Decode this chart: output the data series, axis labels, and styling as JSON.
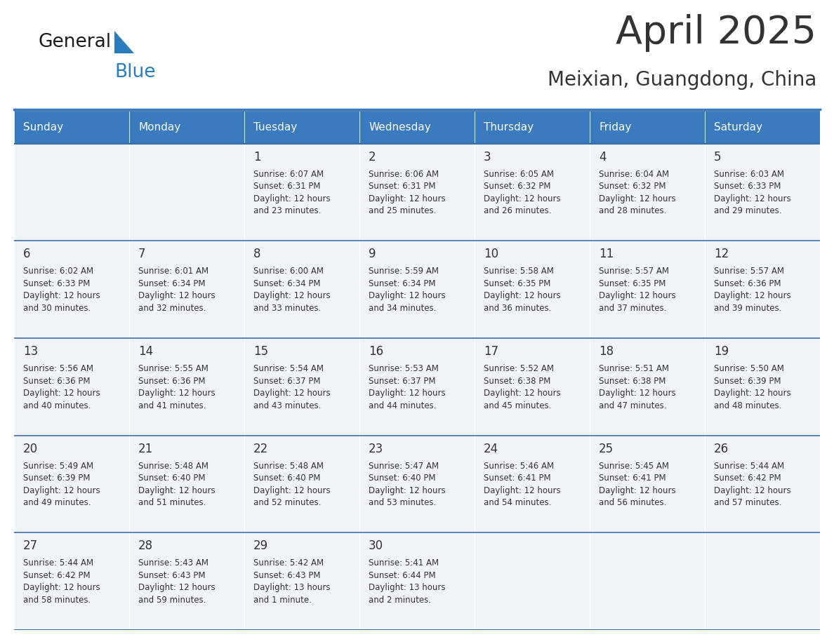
{
  "title": "April 2025",
  "subtitle": "Meixian, Guangdong, China",
  "header_bg": "#3a7abf",
  "header_text": "#ffffff",
  "cell_bg": "#f0f4f8",
  "row_line_color": "#3a6fa8",
  "text_color": "#333333",
  "day_headers": [
    "Sunday",
    "Monday",
    "Tuesday",
    "Wednesday",
    "Thursday",
    "Friday",
    "Saturday"
  ],
  "weeks": [
    [
      {
        "day": "",
        "info": ""
      },
      {
        "day": "",
        "info": ""
      },
      {
        "day": "1",
        "info": "Sunrise: 6:07 AM\nSunset: 6:31 PM\nDaylight: 12 hours\nand 23 minutes."
      },
      {
        "day": "2",
        "info": "Sunrise: 6:06 AM\nSunset: 6:31 PM\nDaylight: 12 hours\nand 25 minutes."
      },
      {
        "day": "3",
        "info": "Sunrise: 6:05 AM\nSunset: 6:32 PM\nDaylight: 12 hours\nand 26 minutes."
      },
      {
        "day": "4",
        "info": "Sunrise: 6:04 AM\nSunset: 6:32 PM\nDaylight: 12 hours\nand 28 minutes."
      },
      {
        "day": "5",
        "info": "Sunrise: 6:03 AM\nSunset: 6:33 PM\nDaylight: 12 hours\nand 29 minutes."
      }
    ],
    [
      {
        "day": "6",
        "info": "Sunrise: 6:02 AM\nSunset: 6:33 PM\nDaylight: 12 hours\nand 30 minutes."
      },
      {
        "day": "7",
        "info": "Sunrise: 6:01 AM\nSunset: 6:34 PM\nDaylight: 12 hours\nand 32 minutes."
      },
      {
        "day": "8",
        "info": "Sunrise: 6:00 AM\nSunset: 6:34 PM\nDaylight: 12 hours\nand 33 minutes."
      },
      {
        "day": "9",
        "info": "Sunrise: 5:59 AM\nSunset: 6:34 PM\nDaylight: 12 hours\nand 34 minutes."
      },
      {
        "day": "10",
        "info": "Sunrise: 5:58 AM\nSunset: 6:35 PM\nDaylight: 12 hours\nand 36 minutes."
      },
      {
        "day": "11",
        "info": "Sunrise: 5:57 AM\nSunset: 6:35 PM\nDaylight: 12 hours\nand 37 minutes."
      },
      {
        "day": "12",
        "info": "Sunrise: 5:57 AM\nSunset: 6:36 PM\nDaylight: 12 hours\nand 39 minutes."
      }
    ],
    [
      {
        "day": "13",
        "info": "Sunrise: 5:56 AM\nSunset: 6:36 PM\nDaylight: 12 hours\nand 40 minutes."
      },
      {
        "day": "14",
        "info": "Sunrise: 5:55 AM\nSunset: 6:36 PM\nDaylight: 12 hours\nand 41 minutes."
      },
      {
        "day": "15",
        "info": "Sunrise: 5:54 AM\nSunset: 6:37 PM\nDaylight: 12 hours\nand 43 minutes."
      },
      {
        "day": "16",
        "info": "Sunrise: 5:53 AM\nSunset: 6:37 PM\nDaylight: 12 hours\nand 44 minutes."
      },
      {
        "day": "17",
        "info": "Sunrise: 5:52 AM\nSunset: 6:38 PM\nDaylight: 12 hours\nand 45 minutes."
      },
      {
        "day": "18",
        "info": "Sunrise: 5:51 AM\nSunset: 6:38 PM\nDaylight: 12 hours\nand 47 minutes."
      },
      {
        "day": "19",
        "info": "Sunrise: 5:50 AM\nSunset: 6:39 PM\nDaylight: 12 hours\nand 48 minutes."
      }
    ],
    [
      {
        "day": "20",
        "info": "Sunrise: 5:49 AM\nSunset: 6:39 PM\nDaylight: 12 hours\nand 49 minutes."
      },
      {
        "day": "21",
        "info": "Sunrise: 5:48 AM\nSunset: 6:40 PM\nDaylight: 12 hours\nand 51 minutes."
      },
      {
        "day": "22",
        "info": "Sunrise: 5:48 AM\nSunset: 6:40 PM\nDaylight: 12 hours\nand 52 minutes."
      },
      {
        "day": "23",
        "info": "Sunrise: 5:47 AM\nSunset: 6:40 PM\nDaylight: 12 hours\nand 53 minutes."
      },
      {
        "day": "24",
        "info": "Sunrise: 5:46 AM\nSunset: 6:41 PM\nDaylight: 12 hours\nand 54 minutes."
      },
      {
        "day": "25",
        "info": "Sunrise: 5:45 AM\nSunset: 6:41 PM\nDaylight: 12 hours\nand 56 minutes."
      },
      {
        "day": "26",
        "info": "Sunrise: 5:44 AM\nSunset: 6:42 PM\nDaylight: 12 hours\nand 57 minutes."
      }
    ],
    [
      {
        "day": "27",
        "info": "Sunrise: 5:44 AM\nSunset: 6:42 PM\nDaylight: 12 hours\nand 58 minutes."
      },
      {
        "day": "28",
        "info": "Sunrise: 5:43 AM\nSunset: 6:43 PM\nDaylight: 12 hours\nand 59 minutes."
      },
      {
        "day": "29",
        "info": "Sunrise: 5:42 AM\nSunset: 6:43 PM\nDaylight: 13 hours\nand 1 minute."
      },
      {
        "day": "30",
        "info": "Sunrise: 5:41 AM\nSunset: 6:44 PM\nDaylight: 13 hours\nand 2 minutes."
      },
      {
        "day": "",
        "info": ""
      },
      {
        "day": "",
        "info": ""
      },
      {
        "day": "",
        "info": ""
      }
    ]
  ],
  "logo_text1": "General",
  "logo_text2": "Blue",
  "logo_text1_color": "#1a1a1a",
  "logo_text2_color": "#2b7bbf",
  "logo_triangle_color": "#2b7bbf",
  "title_fontsize": 40,
  "subtitle_fontsize": 20,
  "header_fontsize": 11,
  "day_num_fontsize": 12,
  "info_fontsize": 8.5
}
